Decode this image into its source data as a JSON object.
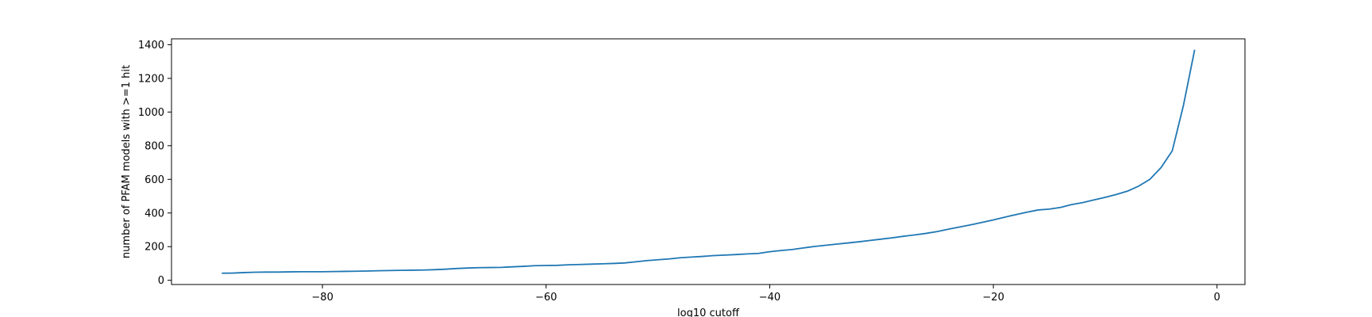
{
  "chart_data": {
    "type": "line",
    "title": "",
    "xlabel": "log10 cutoff",
    "ylabel": "number of PFAM models with >=1 hit",
    "xlim": [
      -93.5,
      2.5
    ],
    "ylim": [
      -25,
      1435
    ],
    "xticks": [
      -80,
      -60,
      -40,
      -20,
      0
    ],
    "xtick_labels": [
      "−80",
      "−60",
      "−40",
      "−20",
      "0"
    ],
    "yticks": [
      0,
      200,
      400,
      600,
      800,
      1000,
      1200,
      1400
    ],
    "ytick_labels": [
      "0",
      "200",
      "400",
      "600",
      "800",
      "1000",
      "1200",
      "1400"
    ],
    "grid": false,
    "colors": {
      "line": "#1f77b4",
      "axes": "#000000"
    },
    "series": [
      {
        "x": [
          -89,
          -88,
          -87,
          -86,
          -85,
          -84,
          -83,
          -82,
          -81,
          -80,
          -79,
          -78,
          -77,
          -76,
          -75,
          -74,
          -73,
          -72,
          -71,
          -70,
          -69,
          -68,
          -67,
          -66,
          -65,
          -64,
          -63,
          -62,
          -61,
          -60,
          -59,
          -58,
          -57,
          -56,
          -55,
          -54,
          -53,
          -52,
          -51,
          -50,
          -49,
          -48,
          -47,
          -46,
          -45,
          -44,
          -43,
          -42,
          -41,
          -40,
          -39,
          -38,
          -37,
          -36,
          -35,
          -34,
          -33,
          -32,
          -31,
          -30,
          -29,
          -28,
          -27,
          -26,
          -25,
          -24,
          -23,
          -22,
          -21,
          -20,
          -19,
          -18,
          -17,
          -16,
          -15,
          -14,
          -13,
          -12,
          -11,
          -10,
          -9,
          -8,
          -7,
          -6,
          -5,
          -4,
          -3,
          -2
        ],
        "values": [
          42,
          43,
          46,
          48,
          49,
          49,
          50,
          51,
          51,
          51,
          52,
          53,
          54,
          55,
          57,
          58,
          59,
          60,
          61,
          63,
          66,
          70,
          73,
          75,
          76,
          77,
          80,
          83,
          87,
          88,
          89,
          92,
          94,
          96,
          98,
          100,
          103,
          110,
          117,
          122,
          127,
          134,
          138,
          142,
          147,
          150,
          153,
          157,
          160,
          170,
          177,
          183,
          192,
          201,
          208,
          215,
          222,
          229,
          237,
          245,
          253,
          262,
          270,
          279,
          290,
          304,
          317,
          330,
          344,
          359,
          375,
          390,
          405,
          418,
          423,
          433,
          450,
          462,
          478,
          493,
          510,
          530,
          560,
          600,
          670,
          770,
          1040,
          1370
        ]
      }
    ]
  }
}
